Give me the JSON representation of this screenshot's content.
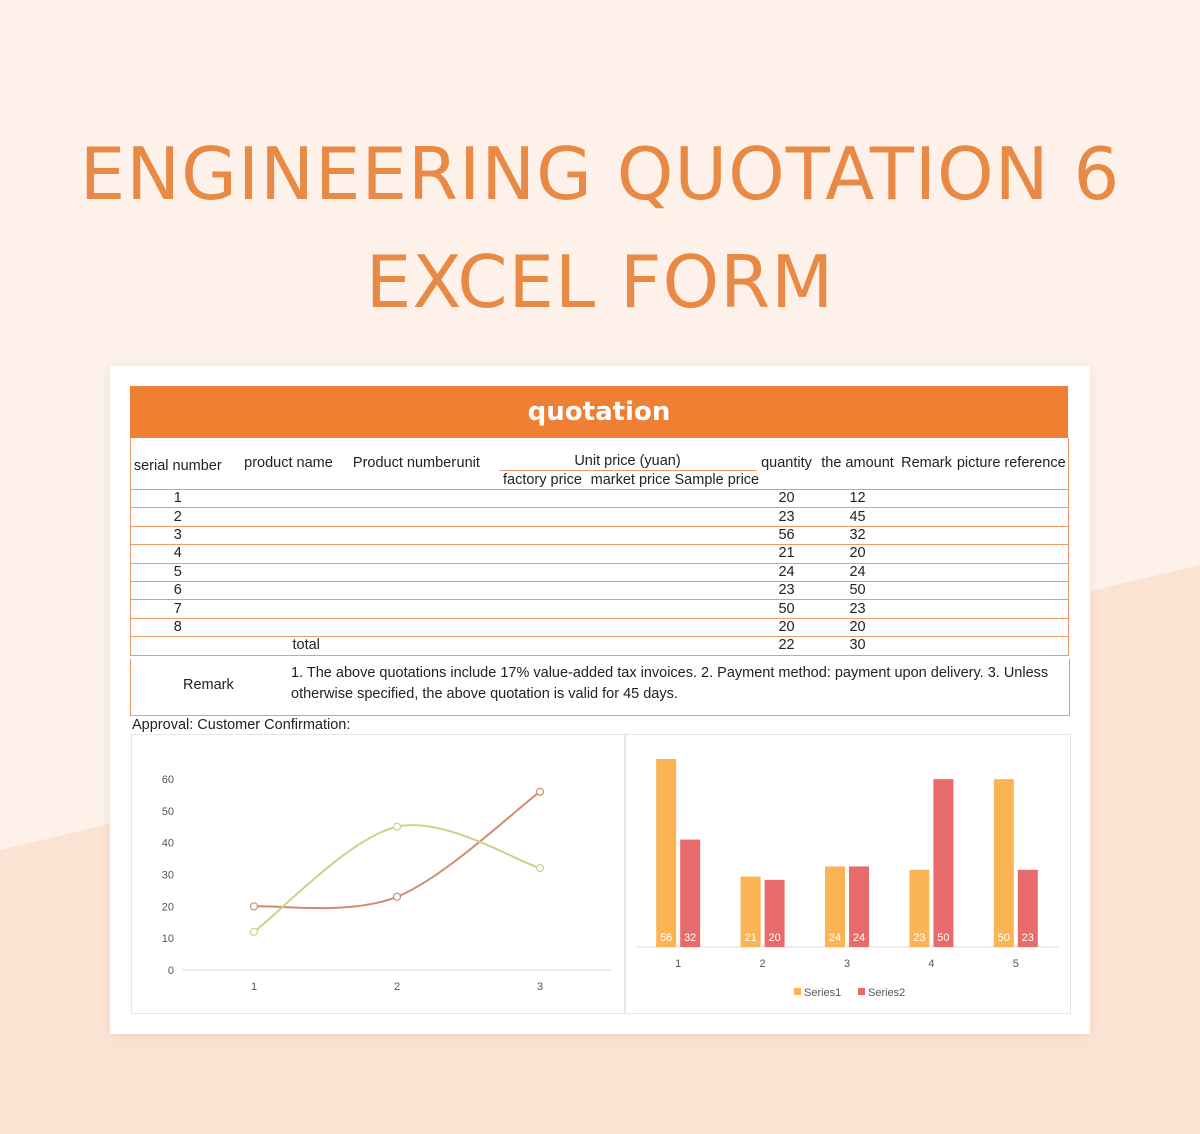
{
  "headline": {
    "line1": "ENGINEERING QUOTATION 6",
    "line2": "EXCEL FORM"
  },
  "form": {
    "title": "quotation",
    "columns": {
      "serial": "serial number",
      "product_name": "product name",
      "product_number": "Product number",
      "unit": "unit",
      "unit_price": "Unit price (yuan)",
      "factory_price": "factory price",
      "market_price": "market price",
      "sample_price": "Sample price",
      "quantity": "quantity",
      "amount": "the amount",
      "remark": "Remark",
      "picture": "picture reference"
    },
    "rows": [
      {
        "serial": "1",
        "quantity": "20",
        "amount": "12"
      },
      {
        "serial": "2",
        "quantity": "23",
        "amount": "45"
      },
      {
        "serial": "3",
        "quantity": "56",
        "amount": "32"
      },
      {
        "serial": "4",
        "quantity": "21",
        "amount": "20"
      },
      {
        "serial": "5",
        "quantity": "24",
        "amount": "24"
      },
      {
        "serial": "6",
        "quantity": "23",
        "amount": "50"
      },
      {
        "serial": "7",
        "quantity": "50",
        "amount": "23"
      },
      {
        "serial": "8",
        "quantity": "20",
        "amount": "20"
      }
    ],
    "total": {
      "label": "total",
      "quantity": "22",
      "amount": "30"
    },
    "remark_label": "Remark",
    "remark_text": "1. The above quotations include 17% value-added tax invoices. 2. Payment method: payment upon delivery. 3. Unless otherwise specified, the above quotation is valid for 45 days.",
    "approval": "Approval: Customer Confirmation:"
  },
  "colors": {
    "accent": "#ee7f33",
    "headline": "#e88a45",
    "series1": "#fbb454",
    "series2": "#e86b6b",
    "line_a": "#d08c6e",
    "line_b": "#c9d48a"
  },
  "chart_data": [
    {
      "type": "line",
      "categories": [
        "1",
        "2",
        "3"
      ],
      "series": [
        {
          "values": [
            20,
            23,
            56
          ]
        },
        {
          "values": [
            12,
            45,
            32
          ]
        }
      ],
      "y_ticks": [
        "0",
        "10",
        "20",
        "30",
        "40",
        "50",
        "60"
      ],
      "ylim": [
        0,
        60
      ],
      "grid": false,
      "smooth": true
    },
    {
      "type": "bar",
      "categories": [
        "1",
        "2",
        "3",
        "4",
        "5"
      ],
      "series": [
        {
          "name": "Series1",
          "values": [
            56,
            21,
            24,
            23,
            50
          ]
        },
        {
          "name": "Series2",
          "values": [
            32,
            20,
            24,
            50,
            23
          ]
        }
      ],
      "data_labels": true,
      "legend": "bottom"
    }
  ]
}
